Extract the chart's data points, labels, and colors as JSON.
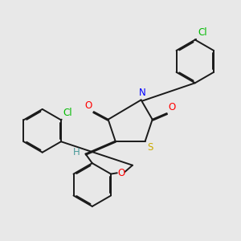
{
  "background_color": "#e8e8e8",
  "bond_color": "#1a1a1a",
  "atom_colors": {
    "Cl": "#00bb00",
    "O": "#ff0000",
    "N": "#0000ff",
    "S": "#ccaa00",
    "H": "#4a9a9a",
    "C": "#1a1a1a"
  },
  "font_size_atoms": 8.5,
  "linewidth": 1.4
}
